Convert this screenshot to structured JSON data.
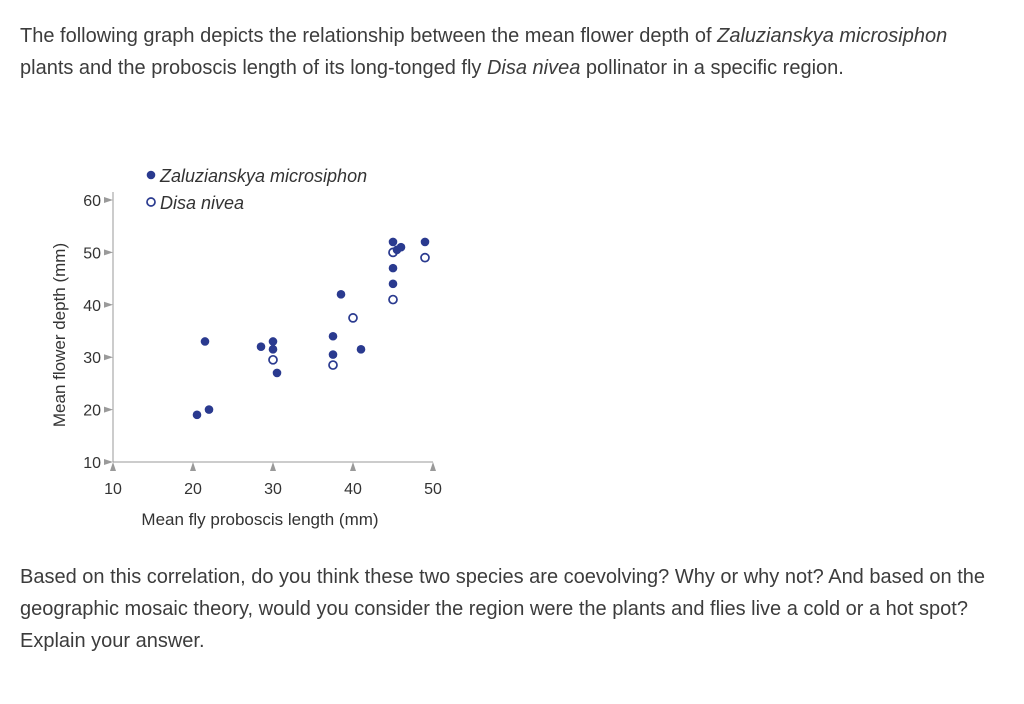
{
  "question": {
    "intro_parts": [
      "The following graph depicts the relationship between the mean flower depth of ",
      "Zaluzianskya microsiphon",
      " plants and the proboscis length of its long-tonged fly ",
      "Disa nivea",
      " pollinator in a specific region."
    ],
    "prompt": "Based on this correlation, do you think these two species are coevolving? Why or why not? And based on the geographic mosaic theory, would you consider the region were the plants and flies live a cold or a hot spot? Explain your answer."
  },
  "chart_data": {
    "type": "scatter",
    "xlabel": "Mean fly proboscis length (mm)",
    "ylabel": "Mean flower depth (mm)",
    "xlim": [
      10,
      50
    ],
    "ylim": [
      10,
      60
    ],
    "x_ticks": [
      10,
      20,
      30,
      40,
      50
    ],
    "y_ticks": [
      10,
      20,
      30,
      40,
      50,
      60
    ],
    "legend_position": "top-left",
    "series": [
      {
        "name": "Zaluzianskya microsiphon",
        "marker": "filled",
        "color": "#2a3a8f",
        "points": [
          [
            20.5,
            19
          ],
          [
            22,
            20
          ],
          [
            21.5,
            33
          ],
          [
            28.5,
            32
          ],
          [
            30,
            33
          ],
          [
            30,
            31.5
          ],
          [
            30.5,
            27
          ],
          [
            37.5,
            34
          ],
          [
            37.5,
            30.5
          ],
          [
            38.5,
            42
          ],
          [
            41,
            31.5
          ],
          [
            45,
            52
          ],
          [
            45.5,
            50.5
          ],
          [
            46,
            51
          ],
          [
            45,
            47
          ],
          [
            45,
            44
          ],
          [
            49,
            52
          ]
        ]
      },
      {
        "name": "Disa nivea",
        "marker": "open",
        "color": "#2a3a8f",
        "points": [
          [
            30,
            29.5
          ],
          [
            37.5,
            28.5
          ],
          [
            40,
            37.5
          ],
          [
            45,
            50
          ],
          [
            45,
            41
          ],
          [
            49,
            49
          ]
        ]
      }
    ]
  }
}
